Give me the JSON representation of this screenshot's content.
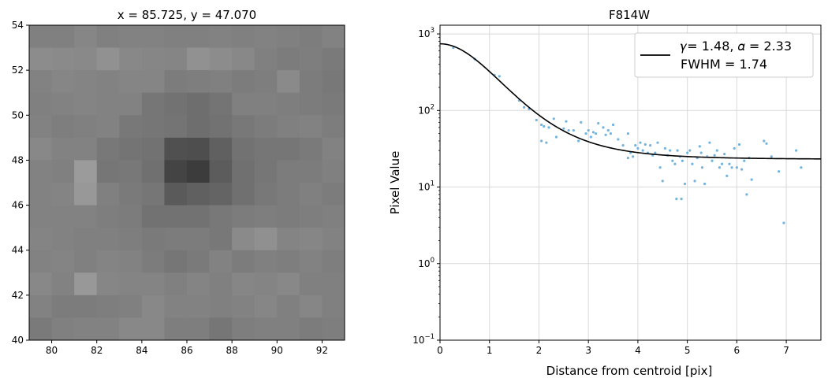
{
  "chart_data": [
    {
      "type": "heatmap",
      "title": "x = 85.725, y = 47.070",
      "xlim": [
        79,
        93
      ],
      "ylim": [
        40,
        54
      ],
      "xticks": [
        80,
        82,
        84,
        86,
        88,
        90,
        92
      ],
      "yticks": [
        40,
        42,
        44,
        46,
        48,
        50,
        52,
        54
      ],
      "xtick_labels": [
        "80",
        "82",
        "84",
        "86",
        "88",
        "90",
        "92"
      ],
      "ytick_labels": [
        "40",
        "42",
        "44",
        "46",
        "48",
        "50",
        "52",
        "54"
      ],
      "colormap": "grayscale",
      "grid": false,
      "rows_top_to_bottom": [
        [
          128,
          128,
          134,
          128,
          130,
          130,
          128,
          128,
          130,
          128,
          130,
          128,
          125,
          130
        ],
        [
          140,
          138,
          137,
          145,
          136,
          134,
          133,
          145,
          140,
          136,
          128,
          124,
          126,
          122
        ],
        [
          130,
          134,
          132,
          130,
          133,
          133,
          124,
          126,
          128,
          124,
          126,
          138,
          124,
          120
        ],
        [
          128,
          130,
          132,
          130,
          130,
          118,
          114,
          110,
          116,
          128,
          128,
          126,
          124,
          122
        ],
        [
          130,
          126,
          128,
          130,
          120,
          118,
          116,
          110,
          114,
          120,
          124,
          128,
          130,
          125
        ],
        [
          136,
          130,
          130,
          120,
          116,
          114,
          80,
          78,
          96,
          114,
          118,
          118,
          122,
          130
        ],
        [
          130,
          128,
          155,
          118,
          120,
          112,
          68,
          60,
          92,
          112,
          118,
          124,
          124,
          128
        ],
        [
          130,
          132,
          152,
          128,
          122,
          118,
          90,
          96,
          100,
          112,
          120,
          124,
          128,
          124
        ],
        [
          130,
          130,
          130,
          126,
          124,
          114,
          114,
          114,
          120,
          124,
          126,
          124,
          126,
          128
        ],
        [
          132,
          130,
          128,
          128,
          126,
          122,
          124,
          124,
          120,
          138,
          144,
          132,
          134,
          130
        ],
        [
          130,
          132,
          128,
          132,
          130,
          124,
          118,
          122,
          130,
          124,
          128,
          126,
          130,
          126
        ],
        [
          136,
          130,
          152,
          134,
          132,
          132,
          128,
          132,
          128,
          134,
          132,
          136,
          128,
          128
        ],
        [
          130,
          124,
          124,
          126,
          128,
          136,
          130,
          130,
          128,
          130,
          134,
          128,
          134,
          128
        ],
        [
          122,
          128,
          130,
          130,
          136,
          136,
          126,
          126,
          118,
          126,
          128,
          128,
          124,
          126
        ]
      ]
    },
    {
      "type": "scatter",
      "title": "F814W",
      "xlabel": "Distance from centroid [pix]",
      "ylabel": "Pixel Value",
      "xlim": [
        0,
        7.7
      ],
      "ylim": [
        0.1,
        1300
      ],
      "yscale": "log",
      "grid": true,
      "xticks": [
        0,
        1,
        2,
        3,
        4,
        5,
        6,
        7
      ],
      "xtick_labels": [
        "0",
        "1",
        "2",
        "3",
        "4",
        "5",
        "6",
        "7"
      ],
      "yticks": [
        0.1,
        1,
        10,
        100,
        1000
      ],
      "ytick_labels": [
        {
          "base": "10",
          "exp": "−1"
        },
        {
          "base": "10",
          "exp": "0"
        },
        {
          "base": "10",
          "exp": "1"
        },
        {
          "base": "10",
          "exp": "2"
        },
        {
          "base": "10",
          "exp": "3"
        }
      ],
      "point_color": "#5aa7d9",
      "line_color": "#000000",
      "legend": {
        "placement": "upper right",
        "line1": "𝛾= 1.48, 𝛼 = 2.33",
        "line2": "FWHM = 1.74"
      },
      "points": [
        [
          0.27,
          660
        ],
        [
          0.7,
          470
        ],
        [
          1.1,
          290
        ],
        [
          1.2,
          280
        ],
        [
          1.6,
          135
        ],
        [
          1.7,
          110
        ],
        [
          1.8,
          105
        ],
        [
          1.95,
          75
        ],
        [
          2.05,
          65
        ],
        [
          2.1,
          62
        ],
        [
          2.05,
          40
        ],
        [
          2.15,
          38
        ],
        [
          2.2,
          60
        ],
        [
          2.3,
          78
        ],
        [
          2.35,
          45
        ],
        [
          2.5,
          58
        ],
        [
          2.55,
          72
        ],
        [
          2.6,
          55
        ],
        [
          2.7,
          55
        ],
        [
          2.8,
          40
        ],
        [
          2.85,
          70
        ],
        [
          2.95,
          50
        ],
        [
          3.0,
          55
        ],
        [
          3.05,
          45
        ],
        [
          3.1,
          52
        ],
        [
          3.15,
          50
        ],
        [
          3.2,
          68
        ],
        [
          3.3,
          60
        ],
        [
          3.35,
          48
        ],
        [
          3.4,
          55
        ],
        [
          3.45,
          50
        ],
        [
          3.5,
          65
        ],
        [
          3.6,
          42
        ],
        [
          3.7,
          35
        ],
        [
          3.8,
          24
        ],
        [
          3.8,
          50
        ],
        [
          3.85,
          28
        ],
        [
          3.9,
          25
        ],
        [
          3.95,
          35
        ],
        [
          4.0,
          32
        ],
        [
          4.05,
          38
        ],
        [
          4.1,
          30
        ],
        [
          4.15,
          36
        ],
        [
          4.2,
          28
        ],
        [
          4.25,
          35
        ],
        [
          4.3,
          26
        ],
        [
          4.35,
          28
        ],
        [
          4.4,
          38
        ],
        [
          4.45,
          18
        ],
        [
          4.5,
          12
        ],
        [
          4.55,
          32
        ],
        [
          4.6,
          26
        ],
        [
          4.65,
          30
        ],
        [
          4.7,
          22
        ],
        [
          4.75,
          20
        ],
        [
          4.78,
          7
        ],
        [
          4.8,
          30
        ],
        [
          4.85,
          25
        ],
        [
          4.88,
          7
        ],
        [
          4.9,
          22
        ],
        [
          4.95,
          11
        ],
        [
          5.0,
          28
        ],
        [
          5.05,
          30
        ],
        [
          5.1,
          20
        ],
        [
          5.15,
          12
        ],
        [
          5.2,
          24
        ],
        [
          5.25,
          34
        ],
        [
          5.28,
          28
        ],
        [
          5.3,
          18
        ],
        [
          5.35,
          11
        ],
        [
          5.4,
          25
        ],
        [
          5.45,
          38
        ],
        [
          5.5,
          22
        ],
        [
          5.55,
          26
        ],
        [
          5.6,
          30
        ],
        [
          5.65,
          18
        ],
        [
          5.7,
          20
        ],
        [
          5.75,
          27
        ],
        [
          5.8,
          14
        ],
        [
          5.85,
          20
        ],
        [
          5.9,
          18
        ],
        [
          5.95,
          32
        ],
        [
          6.0,
          18
        ],
        [
          6.05,
          36
        ],
        [
          6.1,
          17
        ],
        [
          6.15,
          22
        ],
        [
          6.2,
          8
        ],
        [
          6.25,
          24
        ],
        [
          6.3,
          12.5
        ],
        [
          6.55,
          40
        ],
        [
          6.6,
          37
        ],
        [
          6.7,
          25
        ],
        [
          6.85,
          16
        ],
        [
          6.95,
          3.4
        ],
        [
          7.2,
          30
        ],
        [
          7.3,
          18
        ]
      ],
      "fit": {
        "amplitude": 720,
        "gamma": 1.48,
        "alpha": 2.33,
        "background": 23
      }
    }
  ]
}
